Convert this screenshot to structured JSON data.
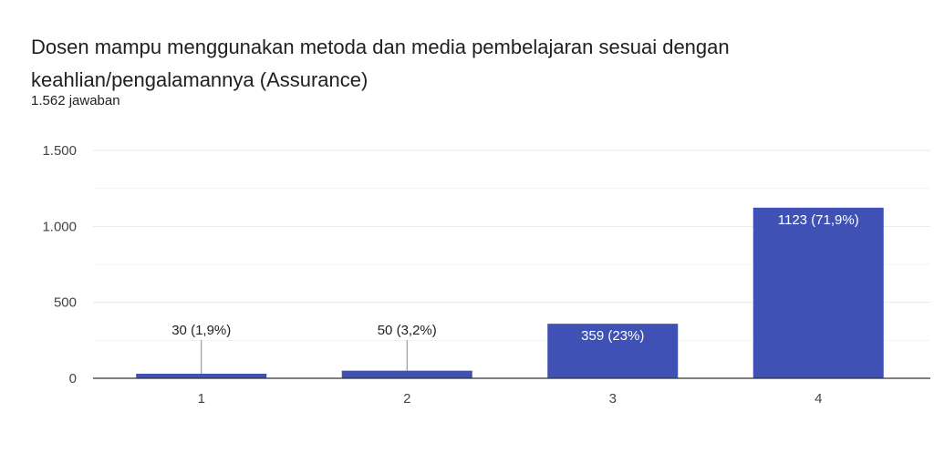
{
  "header": {
    "title": "Dosen mampu menggunakan metoda dan media pembelajaran sesuai dengan keahlian/pengalamannya (Assurance)",
    "responses": "1.562 jawaban"
  },
  "colors": {
    "bar": "#3f51b5",
    "grid": "#e8e8e8",
    "axis": "#333333"
  },
  "chart_data": {
    "type": "bar",
    "categories": [
      "1",
      "2",
      "3",
      "4"
    ],
    "values": [
      30,
      50,
      359,
      1123
    ],
    "data_labels": [
      "30 (1,9%)",
      "50 (3,2%)",
      "359 (23%)",
      "1123 (71,9%)"
    ],
    "ylim": [
      0,
      1500
    ],
    "y_ticks": [
      0,
      500,
      1000,
      1500
    ],
    "y_tick_labels": [
      "0",
      "500",
      "1.000",
      "1.500"
    ],
    "grid": true
  }
}
